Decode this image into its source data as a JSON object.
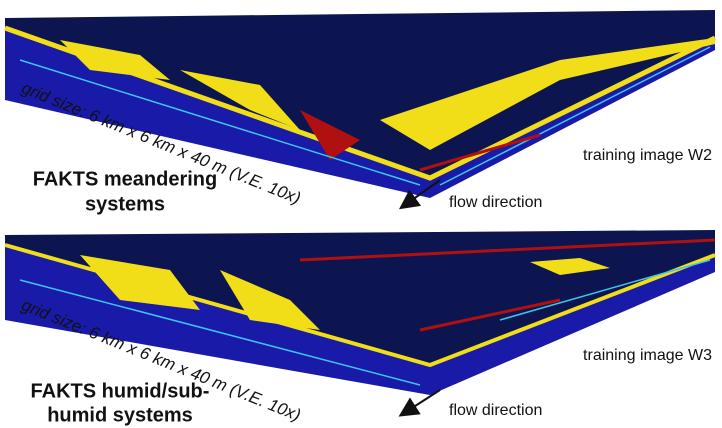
{
  "panels": [
    {
      "title_lines": [
        "FAKTS meandering",
        "systems"
      ],
      "grid_label": "grid size: 6 km x 6 km x 40 m (V.E. 10x)",
      "image_label": "training image W2",
      "flow_label": "flow direction"
    },
    {
      "title_lines": [
        "FAKTS humid/sub-",
        "humid systems"
      ],
      "grid_label": "grid size: 6 km x 6 km x 40 m (V.E. 10x)",
      "image_label": "training image W3",
      "flow_label": "flow direction"
    }
  ]
}
